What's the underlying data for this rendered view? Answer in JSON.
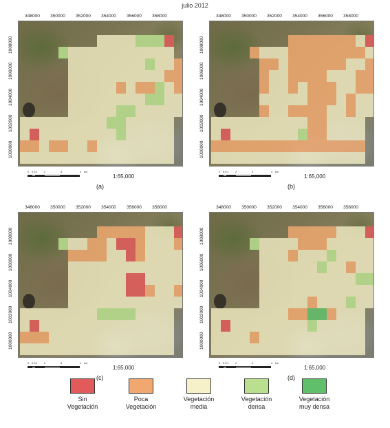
{
  "title": "julio 2012",
  "scale_text": "1:65,000",
  "x_ticks": [
    "348000",
    "350000",
    "352000",
    "354000",
    "356000",
    "358000"
  ],
  "y_ticks": [
    "1000000",
    "1002000",
    "1004000",
    "1006000",
    "1008000"
  ],
  "scalebar_labels": [
    "0",
    "0.5",
    "1",
    "2",
    "3",
    "4",
    "km"
  ],
  "colors": {
    "sin": "#e25a5a",
    "poca": "#f0a870",
    "media": "#f6f1c8",
    "densa": "#b9df8f",
    "muy_densa": "#5fbf6a"
  },
  "legend": [
    {
      "key": "sin",
      "label": "Sin\nVegetación"
    },
    {
      "key": "poca",
      "label": "Poca\nVegetación"
    },
    {
      "key": "media",
      "label": "Vegetación\nmedia"
    },
    {
      "key": "densa",
      "label": "Vegetación\ndensa"
    },
    {
      "key": "muy_densa",
      "label": "Vegetación\nmuy densa"
    }
  ],
  "panels": [
    {
      "label": "(a)",
      "grid": [
        "........MMMMGGGS.",
        "....GMMMMMMMMMMM.",
        ".....MMMMMMMMGMMP",
        ".....MMMMMMMMMMPP",
        ".....MMMMMPMPPGMP",
        ".....MMMMMMMMGGMM",
        ".....MMMMMGGMMMMM",
        "MMMMMMMMMGGMMMMM.",
        "MSMMMMMMMMGMMMMM.",
        "PPMPPMMPMMMMMMMM.",
        "MMMMMMMMMMMMMMMM."
      ]
    },
    {
      "label": "(b)",
      "grid": [
        "........PPPPPPPMS",
        "....PMMMPPPPPPPPM",
        ".....PPMPPPPPPMMP",
        ".....PMMPPPPMMMPP",
        ".....PMMPMPPPMMPP",
        ".....MMMMMPPPMPMM",
        ".....PMMPPPPMMPMM",
        "MMMMMMMMMMPPMMMM.",
        "MSMMMMMMMGPPMMMM.",
        "PPPPPPPPPPPPPPPP.",
        "MMMMMMMMMMMMMMMM."
      ]
    },
    {
      "label": "(c)",
      "grid": [
        "........PPPPPMMMS",
        "....GMMPPMSSPMMMP",
        ".....PPPPMMSPMMMM",
        ".....MMMMMMMMMMMM",
        ".....MMMMMMSSMMMM",
        ".....MMMMMMSSPMMP",
        ".....MMMMMMMMMMMM",
        "MMMMMMMMGGGGMMMM.",
        "MSMMMMMMMMMMMMMM.",
        "PPPMMMMMMMMMMMMM.",
        "MMMMMMMMMMMMMMMM."
      ]
    },
    {
      "label": "(d)",
      "grid": [
        "........PPPPPMMMS",
        "....GMMMMPPPMMMMM",
        ".....MMMPMMMGMMMM",
        ".....MMMMMMGMMPMM",
        ".....MMMMMMMMMMGG",
        ".....MMMMMMMMMMMM",
        ".....MMMMMPMMMGMM",
        "MMMMMMMMPPDDPMMM.",
        "MSMMMMMMMMGMMMMM.",
        "MMMMPMMMMMMMMMMM.",
        "MMMMMMMMMMMMMMMM."
      ]
    }
  ]
}
